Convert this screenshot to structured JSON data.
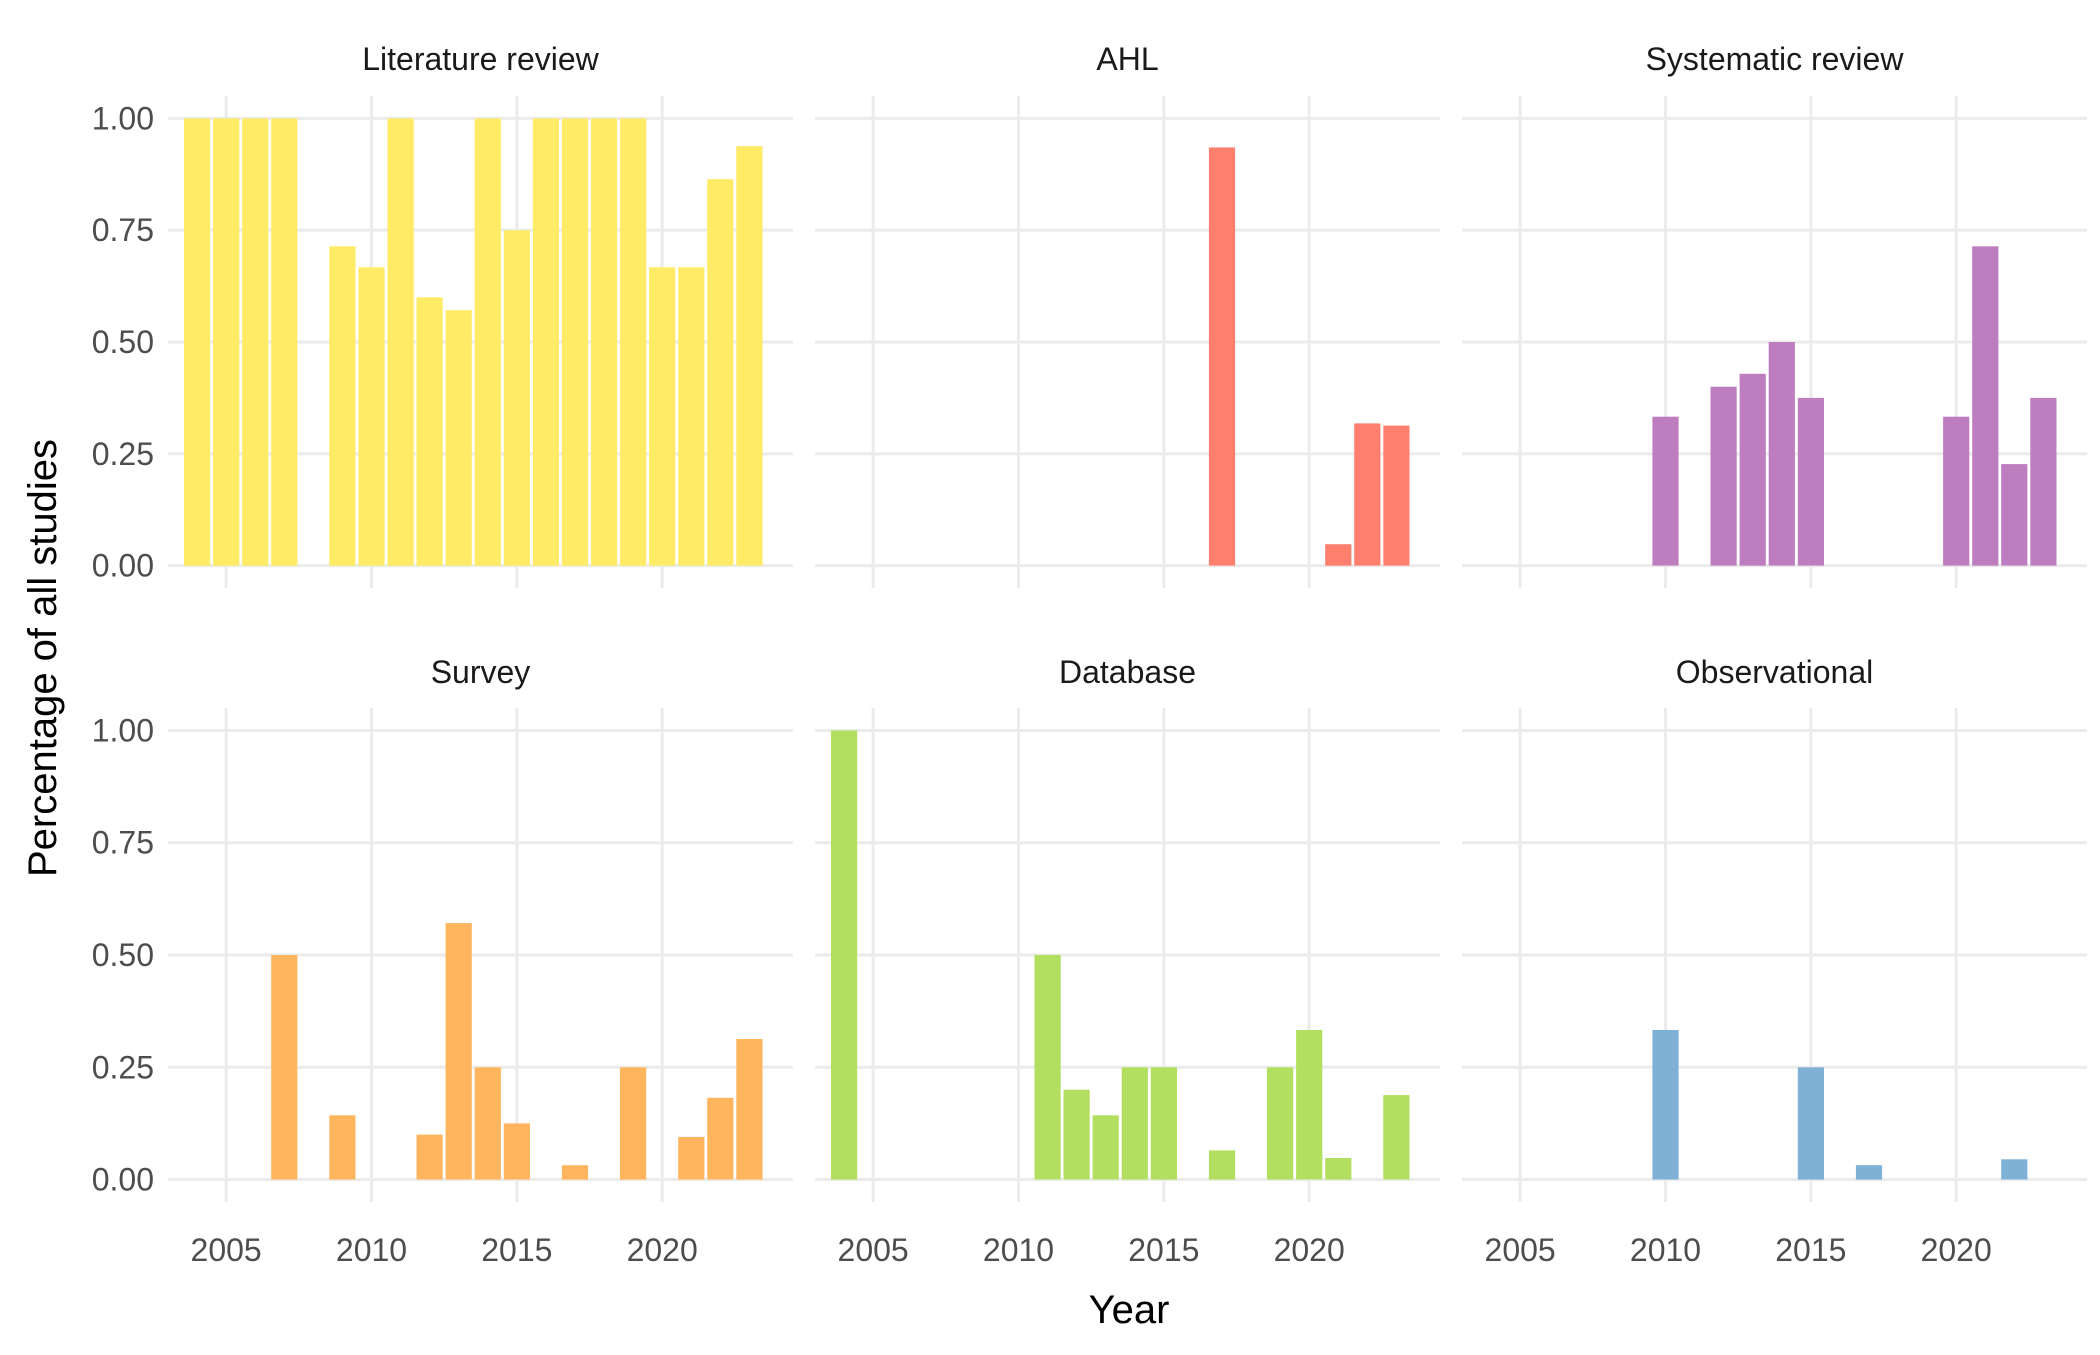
{
  "chart_data": {
    "type": "bar",
    "xlabel": "Year",
    "ylabel": "Percentage of all studies",
    "ylim": [
      0,
      1
    ],
    "y_ticks": [
      "0.00",
      "0.25",
      "0.50",
      "0.75",
      "1.00"
    ],
    "x_ticks": [
      "2005",
      "2010",
      "2015",
      "2020"
    ],
    "xlim": [
      2003,
      2024.5
    ],
    "grid": true,
    "facets": [
      {
        "name": "Literature review",
        "color": "#FFEB66",
        "data": [
          {
            "x": 2004,
            "y": 1.0
          },
          {
            "x": 2005,
            "y": 1.0
          },
          {
            "x": 2006,
            "y": 1.0
          },
          {
            "x": 2007,
            "y": 1.0
          },
          {
            "x": 2009,
            "y": 0.714
          },
          {
            "x": 2010,
            "y": 0.667
          },
          {
            "x": 2011,
            "y": 1.0
          },
          {
            "x": 2012,
            "y": 0.6
          },
          {
            "x": 2013,
            "y": 0.571
          },
          {
            "x": 2014,
            "y": 1.0
          },
          {
            "x": 2015,
            "y": 0.75
          },
          {
            "x": 2016,
            "y": 1.0
          },
          {
            "x": 2017,
            "y": 1.0
          },
          {
            "x": 2018,
            "y": 1.0
          },
          {
            "x": 2019,
            "y": 1.0
          },
          {
            "x": 2020,
            "y": 0.667
          },
          {
            "x": 2021,
            "y": 0.667
          },
          {
            "x": 2022,
            "y": 0.864
          },
          {
            "x": 2023,
            "y": 0.938
          }
        ]
      },
      {
        "name": "AHL",
        "color": "#FF7F6E",
        "data": [
          {
            "x": 2017,
            "y": 0.935
          },
          {
            "x": 2021,
            "y": 0.048
          },
          {
            "x": 2022,
            "y": 0.318
          },
          {
            "x": 2023,
            "y": 0.313
          }
        ]
      },
      {
        "name": "Systematic review",
        "color": "#BE7DBE",
        "data": [
          {
            "x": 2010,
            "y": 0.333
          },
          {
            "x": 2012,
            "y": 0.4
          },
          {
            "x": 2013,
            "y": 0.429
          },
          {
            "x": 2014,
            "y": 0.5
          },
          {
            "x": 2015,
            "y": 0.375
          },
          {
            "x": 2020,
            "y": 0.333
          },
          {
            "x": 2021,
            "y": 0.714
          },
          {
            "x": 2022,
            "y": 0.227
          },
          {
            "x": 2023,
            "y": 0.375
          }
        ]
      },
      {
        "name": "Survey",
        "color": "#FFB55E",
        "data": [
          {
            "x": 2007,
            "y": 0.5
          },
          {
            "x": 2009,
            "y": 0.143
          },
          {
            "x": 2012,
            "y": 0.1
          },
          {
            "x": 2013,
            "y": 0.571
          },
          {
            "x": 2014,
            "y": 0.25
          },
          {
            "x": 2015,
            "y": 0.125
          },
          {
            "x": 2017,
            "y": 0.032
          },
          {
            "x": 2019,
            "y": 0.25
          },
          {
            "x": 2021,
            "y": 0.095
          },
          {
            "x": 2022,
            "y": 0.182
          },
          {
            "x": 2023,
            "y": 0.313
          }
        ]
      },
      {
        "name": "Database",
        "color": "#B2DF5F",
        "data": [
          {
            "x": 2004,
            "y": 1.0
          },
          {
            "x": 2011,
            "y": 0.5
          },
          {
            "x": 2012,
            "y": 0.2
          },
          {
            "x": 2013,
            "y": 0.143
          },
          {
            "x": 2014,
            "y": 0.25
          },
          {
            "x": 2015,
            "y": 0.25
          },
          {
            "x": 2017,
            "y": 0.065
          },
          {
            "x": 2019,
            "y": 0.25
          },
          {
            "x": 2020,
            "y": 0.333
          },
          {
            "x": 2021,
            "y": 0.048
          },
          {
            "x": 2023,
            "y": 0.188
          }
        ]
      },
      {
        "name": "Observational",
        "color": "#7FB1D6",
        "data": [
          {
            "x": 2010,
            "y": 0.333
          },
          {
            "x": 2015,
            "y": 0.25
          },
          {
            "x": 2017,
            "y": 0.032
          },
          {
            "x": 2022,
            "y": 0.045
          }
        ]
      }
    ]
  }
}
